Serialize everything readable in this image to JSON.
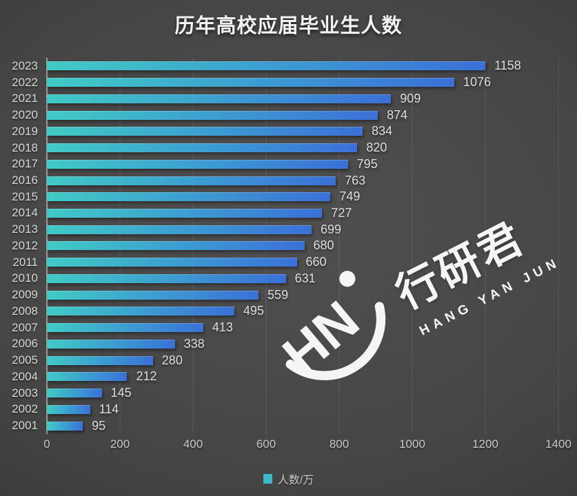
{
  "title": "历年高校应届毕业生人数",
  "legend": {
    "label": "人数/万",
    "marker_color": "#3CB9CC"
  },
  "watermark": {
    "monogram": "HN",
    "cn": "行研君",
    "en": "HANG YAN JUN"
  },
  "colors": {
    "bar_gradient_start": "#41CBC5",
    "bar_gradient_mid": "#3C9AD2",
    "bar_gradient_end": "#3B70D8",
    "background_center": "#505050",
    "background_edge": "#282828",
    "axis_line": "#9b9b9b",
    "label_text": "#dddddd"
  },
  "chart_data": {
    "type": "bar",
    "orientation": "horizontal",
    "title": "历年高校应届毕业生人数",
    "categories": [
      "2023",
      "2022",
      "2021",
      "2020",
      "2019",
      "2018",
      "2017",
      "2016",
      "2015",
      "2014",
      "2013",
      "2012",
      "2011",
      "2010",
      "2009",
      "2008",
      "2007",
      "2006",
      "2005",
      "2004",
      "2003",
      "2002",
      "2001"
    ],
    "values": [
      1158,
      1076,
      909,
      874,
      834,
      820,
      795,
      763,
      749,
      727,
      699,
      680,
      660,
      631,
      559,
      495,
      413,
      338,
      280,
      212,
      145,
      114,
      95
    ],
    "series_name": "人数/万",
    "xlabel": "",
    "ylabel": "",
    "xlim": [
      0,
      1400
    ],
    "x_ticks": [
      0,
      200,
      400,
      600,
      800,
      1000,
      1200,
      1400
    ],
    "grid": "vertical",
    "legend_position": "bottom"
  }
}
